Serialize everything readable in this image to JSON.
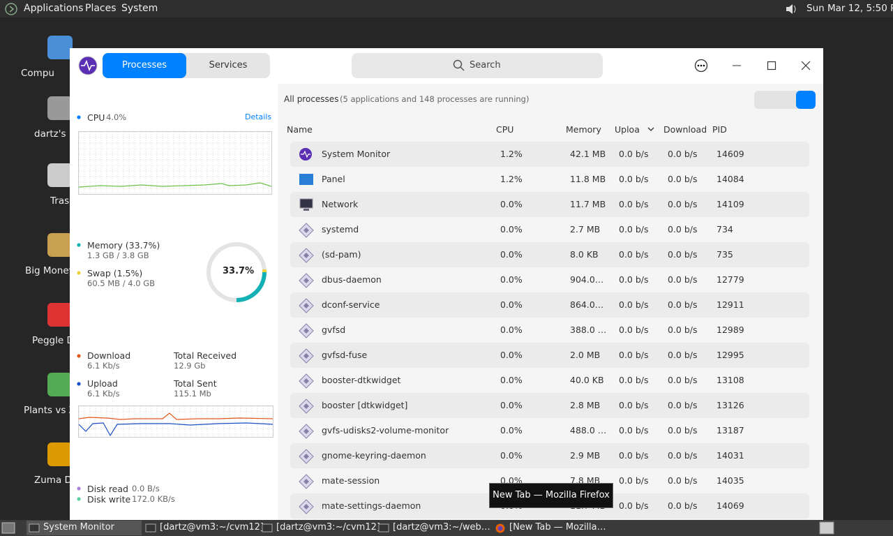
{
  "top_panel": {
    "menus": [
      "Applications",
      "Places",
      "System"
    ],
    "clock": "Sun Mar 12,  5:50 PM"
  },
  "desktop_icons": [
    "Compu",
    "dartz's H",
    "Trash",
    "Big Money",
    "Peggle D",
    "Plants vs Z",
    "Zuma De"
  ],
  "window": {
    "tabs": [
      "Processes",
      "Services"
    ],
    "search": "Search"
  },
  "sidebar": {
    "cpu": {
      "label": "CPU",
      "value": "4.0%",
      "details": "Details"
    },
    "memory": {
      "label": "Memory (33.7%)",
      "value": "1.3 GB / 3.8 GB",
      "swap_label": "Swap (1.5%)",
      "swap_value": "60.5 MB / 4.0 GB",
      "ring": "33.7%"
    },
    "network": {
      "download_label": "Download",
      "download": "6.1 Kb/s",
      "received_label": "Total Received",
      "received": "12.9 Gb",
      "upload_label": "Upload",
      "upload": "6.1 Kb/s",
      "sent_label": "Total Sent",
      "sent": "115.1 Mb"
    },
    "disk": {
      "read_label": "Disk read",
      "read": "0.0 B/s",
      "write_label": "Disk write",
      "write": "172.0 KB/s"
    }
  },
  "processes": {
    "heading": "All processes",
    "summary": "(5 applications and 148 processes are running)",
    "columns": [
      "Name",
      "CPU",
      "Memory",
      "Upload",
      "Download",
      "PID"
    ],
    "rows": [
      [
        "System Monitor",
        "1.2%",
        "42.1 MB",
        "0.0 b/s",
        "0.0 b/s",
        "14609"
      ],
      [
        "Panel",
        "1.2%",
        "11.8 MB",
        "0.0 b/s",
        "0.0 b/s",
        "14084"
      ],
      [
        "Network",
        "0.0%",
        "11.7 MB",
        "0.0 b/s",
        "0.0 b/s",
        "14109"
      ],
      [
        "systemd",
        "0.0%",
        "2.7 MB",
        "0.0 b/s",
        "0.0 b/s",
        "734"
      ],
      [
        "(sd-pam)",
        "0.0%",
        "8.0 KB",
        "0.0 b/s",
        "0.0 b/s",
        "735"
      ],
      [
        "dbus-daemon",
        "0.0%",
        "904.0…",
        "0.0 b/s",
        "0.0 b/s",
        "12779"
      ],
      [
        "dconf-service",
        "0.0%",
        "864.0…",
        "0.0 b/s",
        "0.0 b/s",
        "12911"
      ],
      [
        "gvfsd",
        "0.0%",
        "388.0 …",
        "0.0 b/s",
        "0.0 b/s",
        "12989"
      ],
      [
        "gvfsd-fuse",
        "0.0%",
        "2.0 MB",
        "0.0 b/s",
        "0.0 b/s",
        "12995"
      ],
      [
        "booster-dtkwidget",
        "0.0%",
        "40.0 KB",
        "0.0 b/s",
        "0.0 b/s",
        "13108"
      ],
      [
        "booster [dtkwidget]",
        "0.0%",
        "2.8 MB",
        "0.0 b/s",
        "0.0 b/s",
        "13126"
      ],
      [
        "gvfs-udisks2-volume-monitor",
        "0.0%",
        "488.0 …",
        "0.0 b/s",
        "0.0 b/s",
        "13187"
      ],
      [
        "gnome-keyring-daemon",
        "0.0%",
        "2.9 MB",
        "0.0 b/s",
        "0.0 b/s",
        "14031"
      ],
      [
        "mate-session",
        "0.0%",
        "7.8 MB",
        "0.0 b/s",
        "0.0 b/s",
        "14035"
      ],
      [
        "mate-settings-daemon",
        "0.0%",
        "11.7 MB",
        "0.0 b/s",
        "0.0 b/s",
        "14069"
      ]
    ]
  },
  "tooltip": "New Tab — Mozilla Firefox",
  "taskbar": [
    "System Monitor",
    "[dartz@vm3:~/cvm12]",
    "[dartz@vm3:~/cvm12]",
    "[dartz@vm3:~/web…",
    "[New Tab — Mozilla…"
  ]
}
